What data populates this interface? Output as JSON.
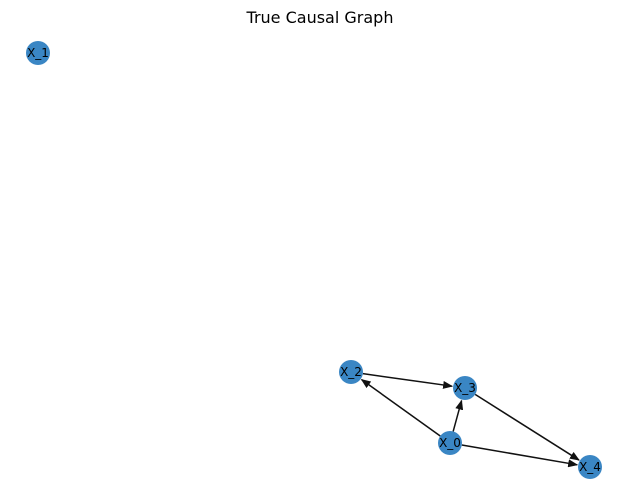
{
  "title": "True Causal Graph",
  "colors": {
    "node_fill": "#3a86c4",
    "edge_stroke": "#111111",
    "label": "#000000"
  },
  "nodes": [
    {
      "id": "X_0",
      "label": "X_0"
    },
    {
      "id": "X_1",
      "label": "X_1"
    },
    {
      "id": "X_2",
      "label": "X_2"
    },
    {
      "id": "X_3",
      "label": "X_3"
    },
    {
      "id": "X_4",
      "label": "X_4"
    }
  ],
  "edges": [
    {
      "from": "X_0",
      "to": "X_2"
    },
    {
      "from": "X_0",
      "to": "X_3"
    },
    {
      "from": "X_0",
      "to": "X_4"
    },
    {
      "from": "X_2",
      "to": "X_3"
    },
    {
      "from": "X_3",
      "to": "X_4"
    }
  ]
}
